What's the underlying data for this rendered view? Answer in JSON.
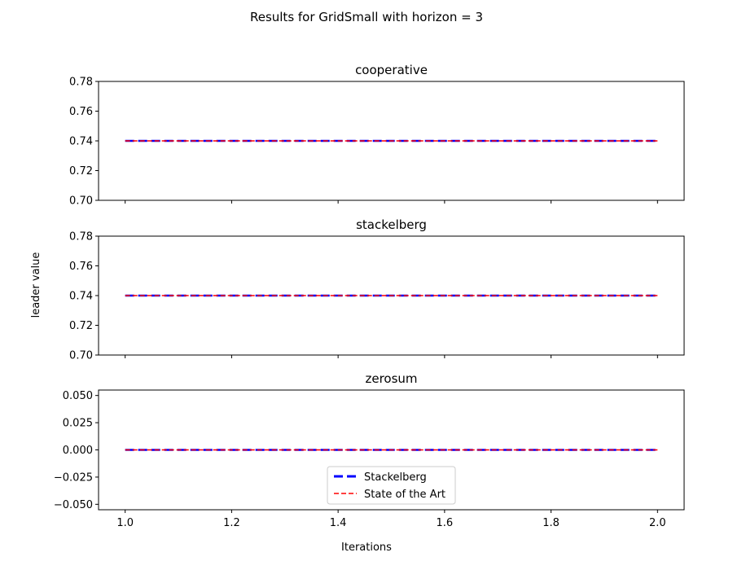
{
  "figure": {
    "suptitle": "Results for GridSmall with horizon = 3",
    "xlabel": "Iterations",
    "ylabel": "leader value"
  },
  "legend": {
    "placement": "lower-center (bottom panel)",
    "entries": [
      {
        "label": "Stackelberg",
        "color": "#0000ff",
        "style": "thick-dashed"
      },
      {
        "label": "State of the Art",
        "color": "#ff0000",
        "style": "thin-dashed"
      }
    ]
  },
  "chart_data": [
    {
      "type": "line",
      "title": "cooperative",
      "xlim": [
        0.95,
        2.05
      ],
      "ylim": [
        0.7,
        0.78
      ],
      "xticks": [
        1.0,
        1.2,
        1.4,
        1.6,
        1.8,
        2.0
      ],
      "yticks": [
        0.7,
        0.72,
        0.74,
        0.76,
        0.78
      ],
      "ytick_labels": [
        "0.70",
        "0.72",
        "0.74",
        "0.76",
        "0.78"
      ],
      "show_xtick_labels": false,
      "series": [
        {
          "name": "Stackelberg",
          "color": "#0000ff",
          "x": [
            1.0,
            2.0
          ],
          "y": [
            0.74,
            0.74
          ]
        },
        {
          "name": "State of the Art",
          "color": "#ff0000",
          "x": [
            1.0,
            2.0
          ],
          "y": [
            0.74,
            0.74
          ]
        }
      ]
    },
    {
      "type": "line",
      "title": "stackelberg",
      "xlim": [
        0.95,
        2.05
      ],
      "ylim": [
        0.7,
        0.78
      ],
      "xticks": [
        1.0,
        1.2,
        1.4,
        1.6,
        1.8,
        2.0
      ],
      "yticks": [
        0.7,
        0.72,
        0.74,
        0.76,
        0.78
      ],
      "ytick_labels": [
        "0.70",
        "0.72",
        "0.74",
        "0.76",
        "0.78"
      ],
      "show_xtick_labels": false,
      "series": [
        {
          "name": "Stackelberg",
          "color": "#0000ff",
          "x": [
            1.0,
            2.0
          ],
          "y": [
            0.74,
            0.74
          ]
        },
        {
          "name": "State of the Art",
          "color": "#ff0000",
          "x": [
            1.0,
            2.0
          ],
          "y": [
            0.74,
            0.74
          ]
        }
      ]
    },
    {
      "type": "line",
      "title": "zerosum",
      "xlim": [
        0.95,
        2.05
      ],
      "ylim": [
        -0.055,
        0.055
      ],
      "xticks": [
        1.0,
        1.2,
        1.4,
        1.6,
        1.8,
        2.0
      ],
      "xtick_labels": [
        "1.0",
        "1.2",
        "1.4",
        "1.6",
        "1.8",
        "2.0"
      ],
      "yticks": [
        -0.05,
        -0.025,
        0.0,
        0.025,
        0.05
      ],
      "ytick_labels": [
        "−0.050",
        "−0.025",
        "0.000",
        "0.025",
        "0.050"
      ],
      "show_xtick_labels": true,
      "series": [
        {
          "name": "Stackelberg",
          "color": "#0000ff",
          "x": [
            1.0,
            2.0
          ],
          "y": [
            0.0,
            0.0
          ]
        },
        {
          "name": "State of the Art",
          "color": "#ff0000",
          "x": [
            1.0,
            2.0
          ],
          "y": [
            0.0,
            0.0
          ]
        }
      ]
    }
  ]
}
